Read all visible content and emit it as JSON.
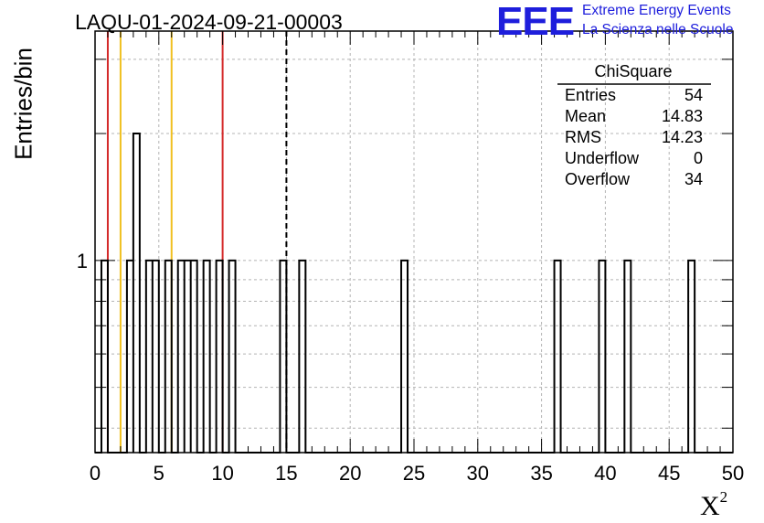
{
  "header": {
    "title": "LAQU-01-2024-09-21-00003",
    "logo_text": "EEE",
    "logo_line1": "Extreme Energy Events",
    "logo_line2": "La Scienza nelle Scuole"
  },
  "stats": {
    "name": "ChiSquare",
    "rows": [
      {
        "label": "Entries",
        "value": "54"
      },
      {
        "label": "Mean",
        "value": "14.83"
      },
      {
        "label": "RMS",
        "value": "14.23"
      },
      {
        "label": "Underflow",
        "value": "0"
      },
      {
        "label": "Overflow",
        "value": "34"
      }
    ]
  },
  "chart_data": {
    "type": "bar",
    "histogram": true,
    "xlabel": "X",
    "xlabel_sup": "2",
    "ylabel": "Entries/bin",
    "xlim": [
      0,
      50
    ],
    "ylim": [
      0.35,
      3.5
    ],
    "yscale": "log",
    "bin_width": 0.5,
    "xticks": [
      0,
      5,
      10,
      15,
      20,
      25,
      30,
      35,
      40,
      45,
      50
    ],
    "ytick_labels": [
      {
        "value": 1,
        "label": "1"
      }
    ],
    "grid": true,
    "bins": [
      {
        "x": 0.5,
        "value": 1
      },
      {
        "x": 2.5,
        "value": 1
      },
      {
        "x": 3.0,
        "value": 2
      },
      {
        "x": 4.0,
        "value": 1
      },
      {
        "x": 4.5,
        "value": 1
      },
      {
        "x": 5.5,
        "value": 1
      },
      {
        "x": 6.5,
        "value": 1
      },
      {
        "x": 7.0,
        "value": 1
      },
      {
        "x": 7.5,
        "value": 1
      },
      {
        "x": 8.5,
        "value": 1
      },
      {
        "x": 9.5,
        "value": 1
      },
      {
        "x": 10.5,
        "value": 1
      },
      {
        "x": 14.5,
        "value": 1
      },
      {
        "x": 16.0,
        "value": 1
      },
      {
        "x": 24.0,
        "value": 1
      },
      {
        "x": 36.0,
        "value": 1
      },
      {
        "x": 39.5,
        "value": 1
      },
      {
        "x": 41.5,
        "value": 1
      },
      {
        "x": 46.5,
        "value": 1
      }
    ],
    "reference_lines": [
      {
        "x": 1,
        "color": "#d42a2a",
        "style": "solid"
      },
      {
        "x": 2,
        "color": "#f0c020",
        "style": "solid"
      },
      {
        "x": 6,
        "color": "#f0c020",
        "style": "solid"
      },
      {
        "x": 10,
        "color": "#d42a2a",
        "style": "solid"
      },
      {
        "x": 15,
        "color": "#000000",
        "style": "dashed"
      }
    ]
  }
}
